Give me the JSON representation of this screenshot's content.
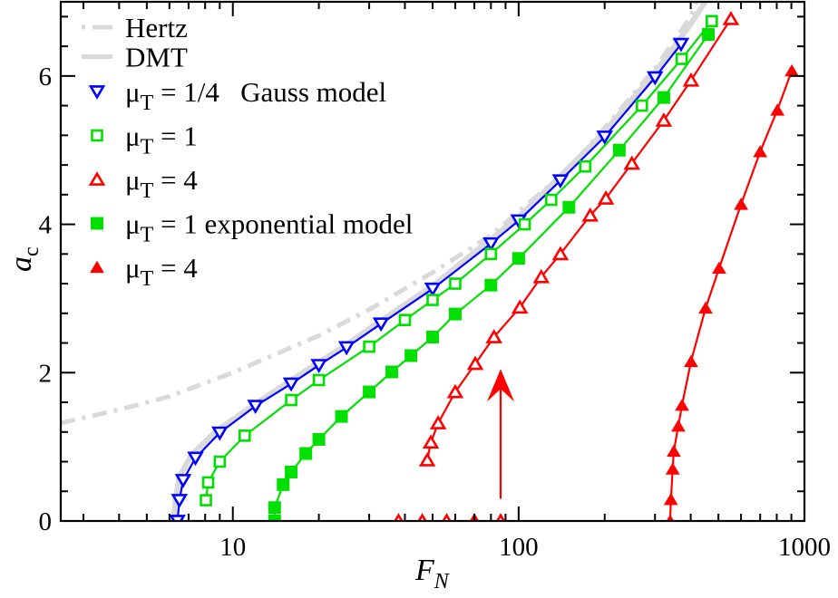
{
  "chart_data": {
    "type": "line",
    "xlabel": "F",
    "xlabel_sub": "N",
    "ylabel": "a",
    "ylabel_sub": "c",
    "xscale": "log",
    "xlim": [
      2.5,
      1000
    ],
    "ylim": [
      0,
      7
    ],
    "x_ticks": [
      10,
      100,
      1000
    ],
    "x_tick_labels": [
      "10",
      "100",
      "1000"
    ],
    "y_ticks": [
      0,
      2,
      4,
      6
    ],
    "y_tick_labels": [
      "0",
      "2",
      "4",
      "6"
    ],
    "grid": false,
    "legend_placement": "top-left",
    "theory": [
      {
        "name": "Hertz",
        "style": "dash-dot",
        "color": "#d9d9d9",
        "x": [
          2.5,
          4,
          6,
          10,
          20,
          30,
          50,
          80,
          100,
          150,
          200,
          300,
          400,
          420
        ],
        "y": [
          1.32,
          1.5,
          1.68,
          2.0,
          2.5,
          2.85,
          3.35,
          3.85,
          4.17,
          4.75,
          5.3,
          6.1,
          6.8,
          7.0
        ]
      },
      {
        "name": "DMT",
        "style": "solid",
        "color": "#d9d9d9",
        "x": [
          6.2,
          6.3,
          6.5,
          7.2,
          8.8,
          12,
          16,
          20,
          25,
          33,
          50,
          80,
          100,
          140,
          200,
          300,
          400,
          450
        ],
        "y": [
          0,
          0.3,
          0.6,
          0.9,
          1.22,
          1.58,
          1.9,
          2.14,
          2.38,
          2.7,
          3.17,
          3.8,
          4.1,
          4.65,
          5.25,
          6.05,
          6.7,
          7.0
        ]
      }
    ],
    "series": [
      {
        "name": "μT = 1/4",
        "label_main": "μ",
        "label_sub": "T",
        "label_rest": " = 1/4   Gauss model",
        "marker": "triangle-down-open",
        "color": "#0000ff",
        "x": [
          6.4,
          6.5,
          6.7,
          7.4,
          9,
          12,
          16,
          20,
          25,
          33,
          50,
          80,
          100,
          140,
          200,
          300,
          370
        ],
        "y": [
          0,
          0.28,
          0.55,
          0.85,
          1.19,
          1.55,
          1.85,
          2.1,
          2.34,
          2.66,
          3.13,
          3.74,
          4.05,
          4.59,
          5.18,
          5.98,
          6.43
        ]
      },
      {
        "name": "μT = 1",
        "label_main": "μ",
        "label_sub": "T",
        "label_rest": " = 1",
        "marker": "square-open",
        "color": "#00e000",
        "x": [
          8.05,
          8.2,
          9,
          11,
          16,
          20,
          30,
          40,
          50,
          60,
          80,
          105,
          130,
          171,
          270,
          372,
          474
        ],
        "y": [
          0.28,
          0.52,
          0.8,
          1.15,
          1.63,
          1.9,
          2.35,
          2.71,
          2.98,
          3.2,
          3.6,
          4.0,
          4.33,
          4.78,
          5.6,
          6.23,
          6.74
        ]
      },
      {
        "name": "μT = 4",
        "label_main": "μ",
        "label_sub": "T",
        "label_rest": " = 4",
        "marker": "triangle-up-open",
        "color": "#ff0000",
        "x": [
          47.9,
          49.3,
          52.3,
          60,
          70.5,
          82,
          101,
          120,
          140,
          178,
          202,
          249,
          322,
          401,
          553
        ],
        "y": [
          0.82,
          1.06,
          1.32,
          1.74,
          2.12,
          2.48,
          2.88,
          3.29,
          3.6,
          4.12,
          4.35,
          4.82,
          5.4,
          5.94,
          6.77
        ],
        "zero_points_x": [
          38,
          46,
          56,
          70,
          86.5
        ]
      },
      {
        "name": "μT = 1 exponential model",
        "label_main": "μ",
        "label_sub": "T",
        "label_rest": " = 1 exponential model",
        "marker": "square-filled",
        "color": "#00e000",
        "x": [
          14,
          14,
          15,
          16,
          18,
          20,
          24,
          30,
          36,
          42,
          50,
          60,
          80,
          100,
          150,
          225,
          322,
          461
        ],
        "y": [
          0,
          0.18,
          0.49,
          0.66,
          0.91,
          1.1,
          1.41,
          1.74,
          2.01,
          2.23,
          2.48,
          2.79,
          3.18,
          3.54,
          4.23,
          5.0,
          5.71,
          6.56
        ]
      },
      {
        "name": "μT = 4",
        "label_main": "μ",
        "label_sub": "T",
        "label_rest": " = 4",
        "marker": "triangle-up-filled",
        "color": "#ff0000",
        "x": [
          339,
          341,
          346,
          349,
          362,
          373,
          401,
          451,
          503,
          600,
          700,
          804,
          903
        ],
        "y": [
          0,
          0.29,
          0.7,
          0.94,
          1.28,
          1.56,
          2.15,
          2.87,
          3.41,
          4.27,
          4.98,
          5.54,
          6.07
        ]
      }
    ],
    "annotations": [
      {
        "type": "arrow",
        "color": "#ff0000",
        "x": 86.5,
        "y_from": 0.3,
        "y_to": 2.05
      }
    ]
  }
}
